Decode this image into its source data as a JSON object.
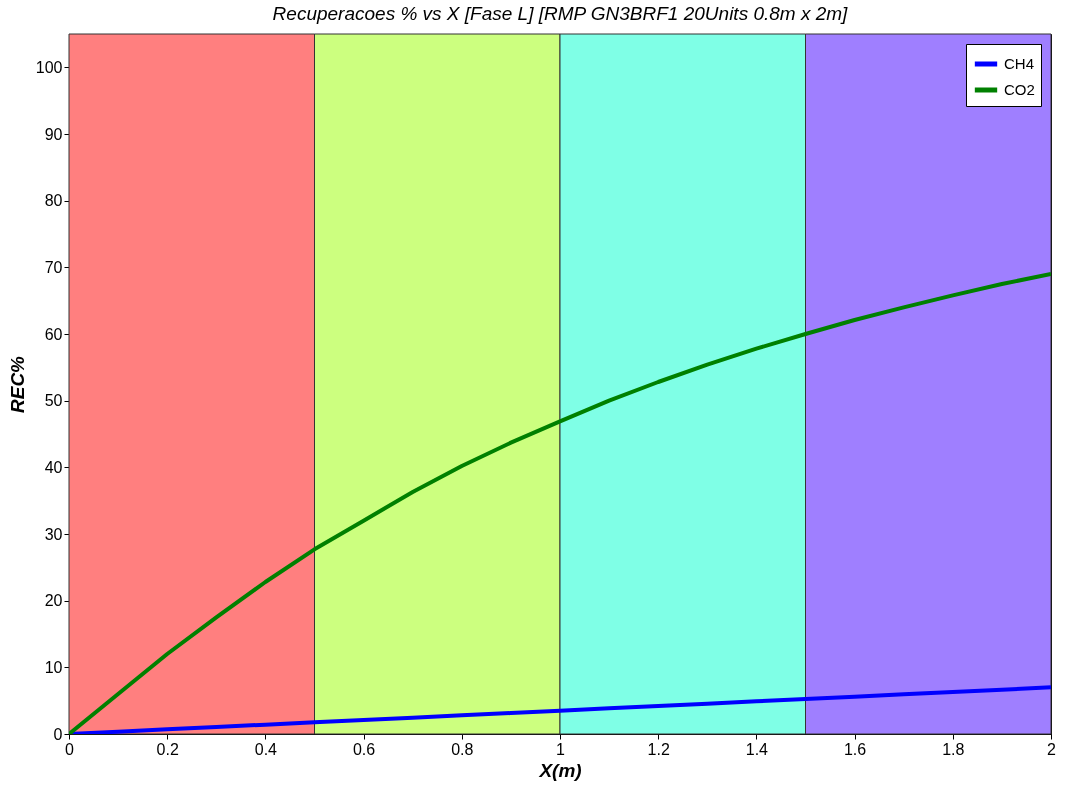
{
  "chart_data": {
    "type": "line",
    "title": "Recuperacoes % vs X [Fase L] [RMP GN3BRF1 20Units 0.8m x 2m]",
    "xlabel": "X(m)",
    "ylabel": "REC%",
    "x": [
      0,
      0.1,
      0.2,
      0.3,
      0.4,
      0.5,
      0.6,
      0.7,
      0.8,
      0.9,
      1.0,
      1.1,
      1.2,
      1.3,
      1.4,
      1.5,
      1.6,
      1.7,
      1.8,
      1.9,
      2.0
    ],
    "series": [
      {
        "name": "CH4",
        "color": "#0000ff",
        "values": [
          0,
          0.35,
          0.7,
          1.05,
          1.4,
          1.75,
          2.1,
          2.45,
          2.8,
          3.15,
          3.5,
          3.85,
          4.2,
          4.55,
          4.9,
          5.25,
          5.6,
          5.95,
          6.3,
          6.65,
          7.0
        ]
      },
      {
        "name": "CO2",
        "color": "#008000",
        "values": [
          0,
          6,
          12,
          17.5,
          22.8,
          27.7,
          32,
          36.3,
          40.2,
          43.7,
          46.9,
          50,
          52.8,
          55.4,
          57.8,
          60,
          62.1,
          64,
          65.8,
          67.5,
          69
        ]
      }
    ],
    "xlim": [
      0,
      2
    ],
    "xticks": [
      0,
      0.2,
      0.4,
      0.6,
      0.8,
      1,
      1.2,
      1.4,
      1.6,
      1.8,
      2
    ],
    "ylim": [
      0,
      105
    ],
    "yticks": [
      0,
      10,
      20,
      30,
      40,
      50,
      60,
      70,
      80,
      90,
      100
    ],
    "bands": [
      {
        "axis": "x",
        "from": 0,
        "to": 0.5,
        "color": "#ff7f7f"
      },
      {
        "axis": "x",
        "from": 0.5,
        "to": 1,
        "color": "#ccff7f"
      },
      {
        "axis": "x",
        "from": 1,
        "to": 1.5,
        "color": "#7fffe6"
      },
      {
        "axis": "x",
        "from": 1.5,
        "to": 2,
        "color": "#9f7fff"
      }
    ],
    "legend": "top right",
    "grid": false,
    "line_style": "solid",
    "marker": "none"
  }
}
